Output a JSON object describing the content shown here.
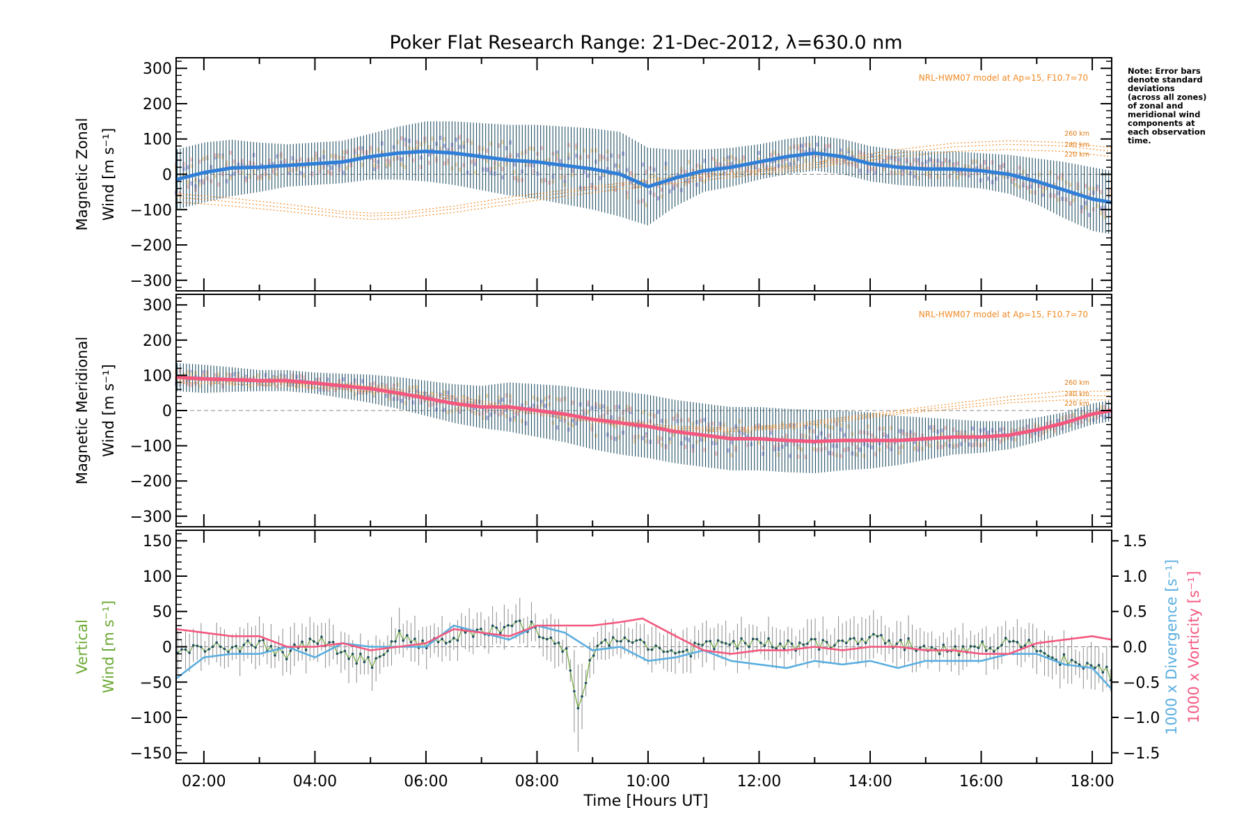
{
  "chart_data": {
    "type": "line",
    "title": "Poker Flat Research Range: 21-Dec-2012, λ=630.0 nm",
    "xlabel": "Time [Hours UT]",
    "x_ticks": [
      "02:00",
      "04:00",
      "06:00",
      "08:00",
      "10:00",
      "12:00",
      "14:00",
      "16:00",
      "18:00"
    ],
    "xlim": [
      1.5,
      18.35
    ],
    "note": [
      "Note: Error bars",
      "denote standard",
      "deviations",
      "(across all zones)",
      "of zonal and",
      "meridional wind",
      "components at",
      "each observation",
      "time."
    ],
    "colors": {
      "zonal": "#2f7fd9",
      "meridional": "#f4587f",
      "vertical": "#6aa832",
      "divergence": "#5aaee0",
      "vorticity": "#f4587f",
      "model": "#f08a24",
      "error_bar": "#1f4e63",
      "zone_points": "#b0aee3"
    },
    "panels": [
      {
        "name": "zonal",
        "ylabel_lines": [
          "Magnetic Zonal",
          "Wind [m s⁻¹]"
        ],
        "ylim": [
          -330,
          330
        ],
        "y_ticks": [
          "300",
          "200",
          "100",
          "0",
          "−100",
          "−200",
          "−300"
        ],
        "model_label": "NRL-HWM07 model at Ap=15, F10.7=70",
        "model_altitudes": [
          "260 km",
          "240 km",
          "220 km"
        ],
        "series": [
          {
            "x": [
              1.5,
              2.0,
              2.5,
              3.0,
              3.5,
              4.0,
              4.5,
              5.0,
              5.5,
              6.0,
              6.5,
              7.0,
              7.5,
              8.0,
              8.5,
              9.0,
              9.5,
              10.0,
              10.5,
              11.0,
              11.5,
              12.0,
              12.5,
              13.0,
              13.5,
              14.0,
              14.5,
              15.0,
              15.5,
              16.0,
              16.5,
              17.0,
              17.5,
              18.0,
              18.35
            ],
            "y": [
              -15,
              5,
              18,
              20,
              25,
              30,
              35,
              50,
              60,
              65,
              60,
              50,
              40,
              35,
              25,
              15,
              0,
              -35,
              -10,
              10,
              20,
              35,
              50,
              60,
              50,
              30,
              20,
              15,
              15,
              10,
              0,
              -20,
              -45,
              -70,
              -80
            ]
          }
        ],
        "error_half_width": [
          85,
          85,
          80,
          70,
          60,
          60,
          60,
          65,
          75,
          85,
          90,
          95,
          100,
          105,
          110,
          115,
          120,
          110,
          80,
          60,
          55,
          50,
          50,
          50,
          50,
          50,
          50,
          50,
          50,
          50,
          55,
          65,
          80,
          90,
          90
        ],
        "model": [
          {
            "x": [
              1.5,
              2.5,
              3.5,
              4.5,
              5.0,
              5.5,
              6.5,
              7.5,
              8.5,
              9.5,
              10.5,
              11.5,
              12.5,
              13.5,
              14.5,
              15.5,
              16.5,
              17.5,
              18.35
            ],
            "y": [
              -55,
              -68,
              -85,
              -105,
              -110,
              -108,
              -90,
              -65,
              -45,
              -25,
              -8,
              5,
              20,
              45,
              70,
              88,
              95,
              90,
              75
            ]
          },
          {
            "x": [
              1.5,
              2.5,
              3.5,
              4.5,
              5.0,
              5.5,
              6.5,
              7.5,
              8.5,
              9.5,
              10.5,
              11.5,
              12.5,
              13.5,
              14.5,
              15.5,
              16.5,
              17.5,
              18.35
            ],
            "y": [
              -65,
              -78,
              -95,
              -112,
              -118,
              -115,
              -98,
              -75,
              -52,
              -32,
              -15,
              0,
              15,
              38,
              60,
              78,
              85,
              80,
              65
            ]
          },
          {
            "x": [
              1.5,
              2.5,
              3.5,
              4.5,
              5.0,
              5.5,
              6.5,
              7.5,
              8.5,
              9.5,
              10.5,
              11.5,
              12.5,
              13.5,
              14.5,
              15.5,
              16.5,
              17.5,
              18.35
            ],
            "y": [
              -78,
              -90,
              -105,
              -122,
              -128,
              -125,
              -108,
              -85,
              -62,
              -42,
              -25,
              -8,
              8,
              30,
              50,
              65,
              70,
              65,
              50
            ]
          }
        ]
      },
      {
        "name": "meridional",
        "ylabel_lines": [
          "Magnetic Meridional",
          "Wind [m s⁻¹]"
        ],
        "ylim": [
          -330,
          330
        ],
        "y_ticks": [
          "300",
          "200",
          "100",
          "0",
          "−100",
          "−200",
          "−300"
        ],
        "model_label": "NRL-HWM07 model at Ap=15, F10.7=70",
        "model_altitudes": [
          "260 km",
          "240 km",
          "220 km"
        ],
        "series": [
          {
            "x": [
              1.5,
              2.0,
              2.5,
              3.0,
              3.5,
              4.0,
              4.5,
              5.0,
              5.5,
              6.0,
              6.5,
              7.0,
              7.5,
              8.0,
              8.5,
              9.0,
              9.5,
              10.0,
              10.5,
              11.0,
              11.5,
              12.0,
              12.5,
              13.0,
              13.5,
              14.0,
              14.5,
              15.0,
              15.5,
              16.0,
              16.5,
              17.0,
              17.5,
              18.0,
              18.35
            ],
            "y": [
              95,
              90,
              88,
              85,
              85,
              78,
              70,
              62,
              50,
              35,
              20,
              10,
              10,
              0,
              -10,
              -25,
              -35,
              -45,
              -60,
              -70,
              -80,
              -80,
              -85,
              -88,
              -85,
              -85,
              -85,
              -80,
              -75,
              -75,
              -70,
              -55,
              -35,
              -10,
              0
            ]
          }
        ],
        "error_half_width": [
          40,
          40,
          35,
          30,
          30,
          30,
          35,
          40,
          45,
          50,
          55,
          60,
          70,
          75,
          80,
          85,
          90,
          90,
          90,
          90,
          90,
          90,
          90,
          90,
          85,
          80,
          70,
          60,
          50,
          45,
          40,
          35,
          30,
          30,
          30
        ],
        "model": [
          {
            "x": [
              1.5,
              2.5,
              3.5,
              4.5,
              5.5,
              6.5,
              7.5,
              8.5,
              9.5,
              10.5,
              11.5,
              12.5,
              13.5,
              14.5,
              15.5,
              16.5,
              17.5,
              18.35
            ],
            "y": [
              95,
              90,
              85,
              75,
              60,
              40,
              15,
              -10,
              -30,
              -45,
              -50,
              -40,
              -20,
              0,
              20,
              40,
              55,
              55
            ]
          },
          {
            "x": [
              1.5,
              2.5,
              3.5,
              4.5,
              5.5,
              6.5,
              7.5,
              8.5,
              9.5,
              10.5,
              11.5,
              12.5,
              13.5,
              14.5,
              15.5,
              16.5,
              17.5,
              18.35
            ],
            "y": [
              88,
              83,
              78,
              68,
              52,
              32,
              8,
              -16,
              -36,
              -50,
              -55,
              -45,
              -25,
              -5,
              12,
              30,
              42,
              42
            ]
          },
          {
            "x": [
              1.5,
              2.5,
              3.5,
              4.5,
              5.5,
              6.5,
              7.5,
              8.5,
              9.5,
              10.5,
              11.5,
              12.5,
              13.5,
              14.5,
              15.5,
              16.5,
              17.5,
              18.35
            ],
            "y": [
              80,
              75,
              70,
              60,
              45,
              25,
              2,
              -22,
              -42,
              -55,
              -60,
              -50,
              -30,
              -10,
              5,
              22,
              30,
              30
            ]
          }
        ]
      },
      {
        "name": "vertical",
        "ylabel_lines": [
          "Vertical",
          "Wind [m s⁻¹]"
        ],
        "ylim": [
          -165,
          165
        ],
        "y_ticks": [
          "150",
          "100",
          "50",
          "0",
          "−50",
          "−100",
          "−150"
        ],
        "y2lim": [
          -1.65,
          1.65
        ],
        "y2_ticks": [
          "1.5",
          "1.0",
          "0.5",
          "0.0",
          "−0.5",
          "−1.0",
          "−1.5"
        ],
        "y2label_lines": [
          "1000 x Divergence [s⁻¹]",
          "1000 x Vorticity [s⁻¹]"
        ],
        "series": [
          {
            "x": [
              1.5,
              2.0,
              2.5,
              3.0,
              3.5,
              4.0,
              4.5,
              5.0,
              5.5,
              6.0,
              6.5,
              7.0,
              7.5,
              7.75,
              8.0,
              8.25,
              8.5,
              8.75,
              9.0,
              9.5,
              10.0,
              10.5,
              11.0,
              11.5,
              12.0,
              12.5,
              13.0,
              13.5,
              14.0,
              14.5,
              15.0,
              15.5,
              16.0,
              16.5,
              17.0,
              17.5,
              18.0,
              18.35
            ],
            "y": [
              -10,
              -5,
              0,
              5,
              -10,
              10,
              -5,
              -25,
              15,
              5,
              15,
              20,
              25,
              30,
              25,
              10,
              0,
              -85,
              -5,
              10,
              5,
              -10,
              0,
              5,
              5,
              0,
              5,
              5,
              10,
              5,
              0,
              -5,
              0,
              5,
              0,
              -20,
              -25,
              -40
            ]
          }
        ],
        "divergence": {
          "x": [
            1.5,
            2.0,
            2.5,
            3.0,
            3.5,
            4.0,
            4.5,
            5.0,
            5.5,
            6.0,
            6.5,
            7.0,
            7.5,
            8.0,
            8.5,
            9.0,
            9.5,
            10.0,
            10.5,
            11.0,
            11.5,
            12.0,
            12.5,
            13.0,
            13.5,
            14.0,
            14.5,
            15.0,
            15.5,
            16.0,
            16.5,
            17.0,
            17.5,
            18.0,
            18.35
          ],
          "y": [
            -0.45,
            -0.15,
            -0.1,
            -0.1,
            0.0,
            -0.15,
            0.05,
            0.0,
            0.0,
            0.0,
            0.3,
            0.2,
            0.1,
            0.3,
            0.2,
            -0.05,
            0.0,
            -0.2,
            -0.15,
            -0.05,
            -0.2,
            -0.25,
            -0.3,
            -0.2,
            -0.25,
            -0.2,
            -0.3,
            -0.2,
            -0.2,
            -0.2,
            -0.1,
            -0.1,
            -0.25,
            -0.3,
            -0.6
          ]
        },
        "vorticity": {
          "x": [
            1.5,
            2.0,
            2.5,
            3.0,
            3.5,
            4.0,
            4.5,
            5.0,
            5.5,
            6.0,
            6.5,
            7.0,
            7.5,
            8.0,
            8.5,
            9.0,
            9.5,
            9.9,
            10.5,
            11.0,
            11.5,
            12.0,
            12.5,
            13.0,
            13.5,
            14.0,
            14.5,
            15.0,
            15.5,
            16.0,
            16.5,
            17.0,
            17.5,
            18.0,
            18.35
          ],
          "y": [
            0.25,
            0.2,
            0.15,
            0.15,
            0.0,
            0.0,
            0.05,
            -0.05,
            0.0,
            0.05,
            0.25,
            0.2,
            0.15,
            0.3,
            0.3,
            0.3,
            0.35,
            0.4,
            0.15,
            -0.05,
            -0.1,
            -0.05,
            -0.05,
            0.0,
            -0.05,
            0.0,
            0.0,
            -0.05,
            -0.05,
            -0.1,
            -0.1,
            0.05,
            0.1,
            0.15,
            0.1
          ]
        }
      }
    ]
  }
}
